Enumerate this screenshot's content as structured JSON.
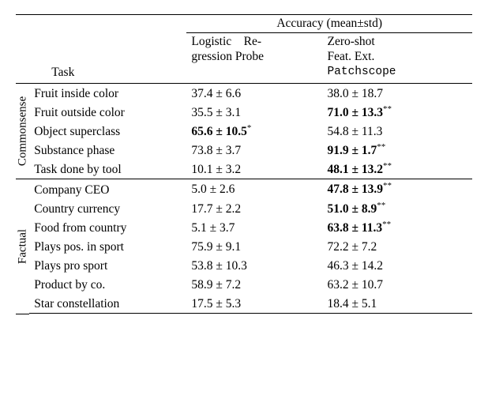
{
  "header": {
    "super": "Accuracy (mean±std)",
    "task_label": "Task",
    "method1_line1": "Logistic",
    "method1_line1b": "Re-",
    "method1_line2": "gression Probe",
    "method2_line1": "Zero-shot",
    "method2_line2": "Feat. Ext.",
    "method2_line3": "Patchscope"
  },
  "categories": [
    {
      "name": "Commonsense"
    },
    {
      "name": "Factual"
    }
  ],
  "rows_commonsense": [
    {
      "task": "Fruit inside color",
      "m1": "37.4 ± 6.6",
      "m1_bold": false,
      "m1_star": "",
      "m2": "38.0 ± 18.7",
      "m2_bold": false,
      "m2_star": ""
    },
    {
      "task": "Fruit outside color",
      "m1": "35.5 ± 3.1",
      "m1_bold": false,
      "m1_star": "",
      "m2": "71.0 ± 13.3",
      "m2_bold": true,
      "m2_star": "**"
    },
    {
      "task": "Object superclass",
      "m1": "65.6 ± 10.5",
      "m1_bold": true,
      "m1_star": "*",
      "m2": "54.8 ± 11.3",
      "m2_bold": false,
      "m2_star": ""
    },
    {
      "task": "Substance phase",
      "m1": "73.8 ± 3.7",
      "m1_bold": false,
      "m1_star": "",
      "m2": "91.9 ± 1.7",
      "m2_bold": true,
      "m2_star": "**"
    },
    {
      "task": "Task done by tool",
      "m1": "10.1 ± 3.2",
      "m1_bold": false,
      "m1_star": "",
      "m2": "48.1 ± 13.2",
      "m2_bold": true,
      "m2_star": "**"
    }
  ],
  "rows_factual": [
    {
      "task": "Company CEO",
      "m1": "5.0 ± 2.6",
      "m1_bold": false,
      "m1_star": "",
      "m2": "47.8 ± 13.9",
      "m2_bold": true,
      "m2_star": "**"
    },
    {
      "task": "Country currency",
      "m1": "17.7 ± 2.2",
      "m1_bold": false,
      "m1_star": "",
      "m2": "51.0 ± 8.9",
      "m2_bold": true,
      "m2_star": "**"
    },
    {
      "task": "Food from country",
      "m1": "5.1 ± 3.7",
      "m1_bold": false,
      "m1_star": "",
      "m2": "63.8 ± 11.3",
      "m2_bold": true,
      "m2_star": "**"
    },
    {
      "task": "Plays pos. in sport",
      "m1": "75.9 ± 9.1",
      "m1_bold": false,
      "m1_star": "",
      "m2": "72.2 ± 7.2",
      "m2_bold": false,
      "m2_star": ""
    },
    {
      "task": "Plays pro sport",
      "m1": "53.8 ± 10.3",
      "m1_bold": false,
      "m1_star": "",
      "m2": "46.3 ± 14.2",
      "m2_bold": false,
      "m2_star": ""
    },
    {
      "task": "Product by co.",
      "m1": "58.9 ± 7.2",
      "m1_bold": false,
      "m1_star": "",
      "m2": "63.2 ± 10.7",
      "m2_bold": false,
      "m2_star": ""
    },
    {
      "task": "Star constellation",
      "m1": "17.5 ± 5.3",
      "m1_bold": false,
      "m1_star": "",
      "m2": "18.4 ± 5.1",
      "m2_bold": false,
      "m2_star": ""
    }
  ]
}
